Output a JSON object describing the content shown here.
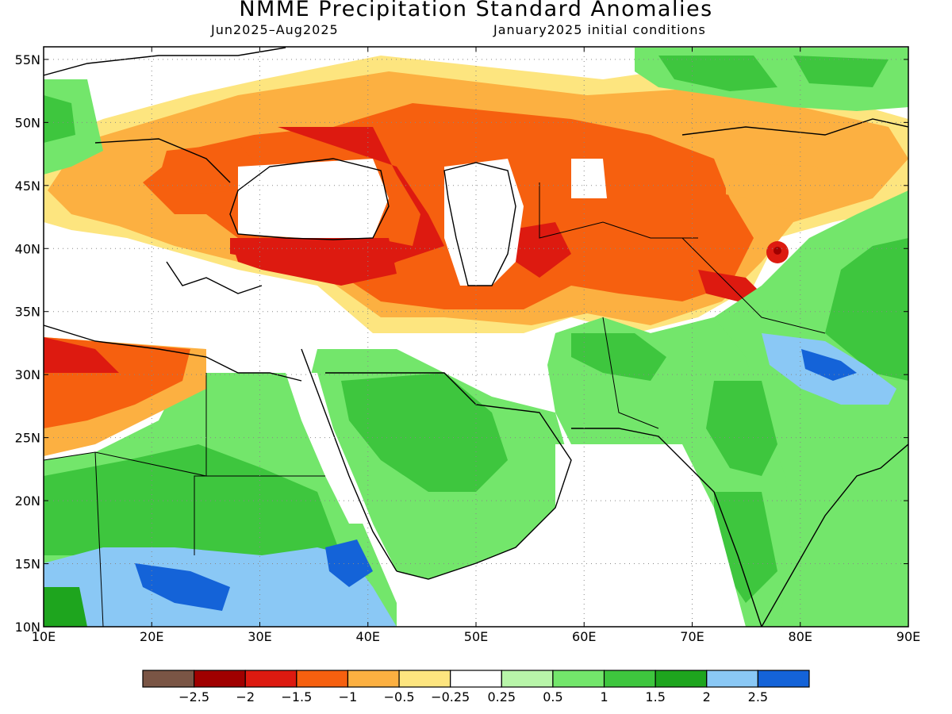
{
  "title": "NMME Precipitation Standard Anomalies",
  "subtitle_left": "Jun2025–Aug2025",
  "subtitle_right": "January2025 initial conditions",
  "map": {
    "lon_range": [
      10,
      90
    ],
    "lat_range": [
      10,
      56
    ],
    "x_tick_labels": [
      "10E",
      "20E",
      "30E",
      "40E",
      "50E",
      "60E",
      "70E",
      "80E",
      "90E"
    ],
    "y_tick_labels": [
      "10N",
      "15N",
      "20N",
      "25N",
      "30N",
      "35N",
      "40N",
      "45N",
      "50N",
      "55N"
    ],
    "gridlines": "dotted"
  },
  "colorbar": {
    "colors": [
      "#7a5545",
      "#a00000",
      "#dd1a10",
      "#f6600f",
      "#fcb041",
      "#fde57f",
      "#ffffff",
      "#b8f5a9",
      "#73e66b",
      "#3ec63e",
      "#1ea51e",
      "#8ac8f5",
      "#1463d8"
    ],
    "labels": [
      "−2.5",
      "−2",
      "−1.5",
      "−1",
      "−0.5",
      "−0.25",
      "0.25",
      "0.5",
      "1",
      "1.5",
      "2",
      "2.5"
    ]
  }
}
